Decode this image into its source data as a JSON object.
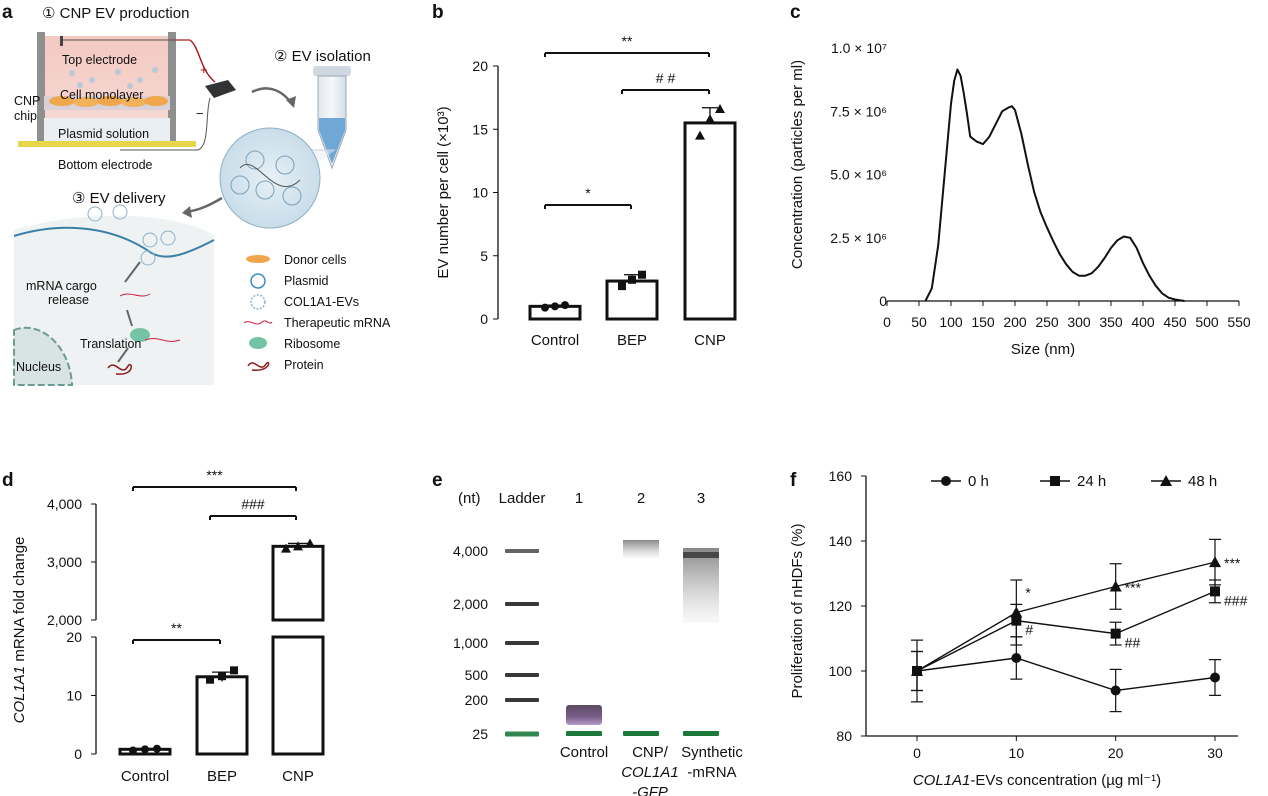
{
  "panels": {
    "a": {
      "letter": "a",
      "step1": "① CNP EV production",
      "top_electrode": "Top electrode",
      "cell_monolayer": "Cell monolayer",
      "cnp_chip_1": "CNP",
      "cnp_chip_2": "chip",
      "plasmid_solution": "Plasmid solution",
      "bottom_electrode": "Bottom electrode",
      "plus": "+",
      "minus": "−",
      "step2": "② EV  isolation",
      "step3": "③ EV delivery",
      "mrna_cargo_1": "mRNA cargo",
      "mrna_cargo_2": "release",
      "translation": "Translation",
      "nucleus": "Nucleus",
      "legend": [
        "Donor cells",
        "Plasmid",
        "COL1A1-EVs",
        "Therapeutic mRNA",
        "Ribosome",
        "Protein"
      ]
    },
    "b": {
      "letter": "b"
    },
    "c": {
      "letter": "c"
    },
    "d": {
      "letter": "d"
    },
    "e": {
      "letter": "e"
    },
    "f": {
      "letter": "f"
    }
  },
  "chart_data": [
    {
      "id": "b",
      "type": "bar",
      "categories": [
        "Control",
        "BEP",
        "CNP"
      ],
      "values": [
        1.0,
        3.0,
        15.5
      ],
      "errors": [
        0.1,
        0.5,
        1.2
      ],
      "points": [
        [
          0.9,
          1.0,
          1.1
        ],
        [
          2.6,
          3.1,
          3.5
        ],
        [
          14.5,
          15.8,
          16.6
        ]
      ],
      "ylabel": "EV number per cell (×10³)",
      "ylim": [
        0,
        20
      ],
      "yticks": [
        0,
        5,
        10,
        15,
        20
      ],
      "significance": [
        {
          "from": 0,
          "to": 1,
          "label": "*"
        },
        {
          "from": 1,
          "to": 2,
          "label": "# #"
        },
        {
          "from": 0,
          "to": 2,
          "label": "**"
        }
      ]
    },
    {
      "id": "c",
      "type": "line",
      "xlabel": "Size (nm)",
      "ylabel": "Concentration (particles per ml)",
      "xlim": [
        0,
        550
      ],
      "ylim": [
        0,
        10000000
      ],
      "xticks": [
        0,
        50,
        100,
        150,
        200,
        250,
        300,
        350,
        400,
        450,
        500,
        550
      ],
      "yticks": [
        0,
        2500000,
        5000000,
        7500000,
        10000000
      ],
      "ytick_labels": [
        "0",
        "2.5 × 10⁶",
        "5.0 × 10⁶",
        "7.5 × 10⁶",
        "1.0 × 10⁷"
      ],
      "x": [
        60,
        70,
        80,
        90,
        100,
        105,
        110,
        115,
        120,
        125,
        130,
        140,
        150,
        160,
        170,
        180,
        190,
        195,
        200,
        210,
        220,
        230,
        240,
        250,
        260,
        270,
        280,
        290,
        300,
        310,
        320,
        330,
        340,
        350,
        360,
        370,
        380,
        390,
        400,
        410,
        420,
        430,
        440,
        450,
        460,
        465
      ],
      "y": [
        0,
        500000,
        2200000,
        5000000,
        7800000,
        8700000,
        9150000,
        8900000,
        8200000,
        7400000,
        6500000,
        6300000,
        6200000,
        6500000,
        7000000,
        7500000,
        7650000,
        7700000,
        7550000,
        6600000,
        5400000,
        4300000,
        3500000,
        2900000,
        2350000,
        1850000,
        1450000,
        1150000,
        1000000,
        1000000,
        1100000,
        1350000,
        1700000,
        2100000,
        2400000,
        2550000,
        2500000,
        2100000,
        1500000,
        1000000,
        600000,
        300000,
        130000,
        60000,
        20000,
        0
      ]
    },
    {
      "id": "d",
      "type": "bar",
      "categories": [
        "Control",
        "BEP",
        "CNP"
      ],
      "values": [
        0.8,
        13.2,
        3270
      ],
      "errors": [
        0.15,
        0.8,
        50
      ],
      "points": [
        [
          0.6,
          0.8,
          0.9
        ],
        [
          12.7,
          13.3,
          14.3
        ],
        [
          3230,
          3270,
          3320
        ]
      ],
      "ylabel": "COL1A1 mRNA fold change",
      "ylabel_italic": "COL1A1",
      "ylabel_rest": " mRNA fold change",
      "broken_axis": true,
      "lower_ylim": [
        0,
        20
      ],
      "lower_yticks": [
        0,
        10,
        20
      ],
      "upper_ylim": [
        2000,
        4000
      ],
      "upper_yticks": [
        2000,
        3000,
        4000
      ],
      "upper_ytick_labels": [
        "2,000",
        "3,000",
        "4,000"
      ],
      "significance": [
        {
          "from": 0,
          "to": 1,
          "label": "**"
        },
        {
          "from": 1,
          "to": 2,
          "label": "###"
        },
        {
          "from": 0,
          "to": 2,
          "label": "***"
        }
      ]
    },
    {
      "id": "e",
      "type": "table",
      "title_unit": "(nt)",
      "lane_headers": [
        "Ladder",
        "1",
        "2",
        "3"
      ],
      "ladder_sizes": [
        "4,000",
        "2,000",
        "1,000",
        "500",
        "200",
        "25"
      ],
      "lane_labels": [
        {
          "lines": [
            "Control"
          ]
        },
        {
          "lines": [
            "CNP/",
            "COL1A1",
            "-GFP"
          ],
          "italic_lines": [
            1,
            2
          ]
        },
        {
          "lines": [
            "Synthetic",
            "-mRNA"
          ]
        }
      ]
    },
    {
      "id": "f",
      "type": "line",
      "xlabel": "COL1A1-EVs concentration (µg ml⁻¹)",
      "xlabel_italic": "COL1A1",
      "xlabel_rest": "-EVs concentration (µg ml⁻¹)",
      "ylabel": "Proliferation of nHDFs (%)",
      "xlim": [
        0,
        30
      ],
      "ylim": [
        80,
        160
      ],
      "xticks": [
        0,
        10,
        20,
        30
      ],
      "yticks": [
        80,
        100,
        120,
        140,
        160
      ],
      "legend_position": "top",
      "x": [
        0,
        10,
        20,
        30
      ],
      "series": [
        {
          "name": "0 h",
          "marker": "circle",
          "values": [
            100,
            104,
            94,
            98
          ],
          "errors": [
            9.5,
            6.5,
            6.5,
            5.5
          ],
          "annotations": [
            "",
            "",
            "",
            ""
          ]
        },
        {
          "name": "24 h",
          "marker": "square",
          "values": [
            100,
            115.5,
            111.5,
            124.5
          ],
          "errors": [
            6,
            5,
            3.5,
            3.5
          ],
          "annotations": [
            "",
            "#",
            "##",
            "###"
          ]
        },
        {
          "name": "48 h",
          "marker": "triangle",
          "values": [
            100,
            118,
            126,
            133.5
          ],
          "errors": [
            6,
            10,
            7,
            7
          ],
          "annotations": [
            "",
            "*",
            "***",
            "***"
          ]
        }
      ]
    }
  ]
}
